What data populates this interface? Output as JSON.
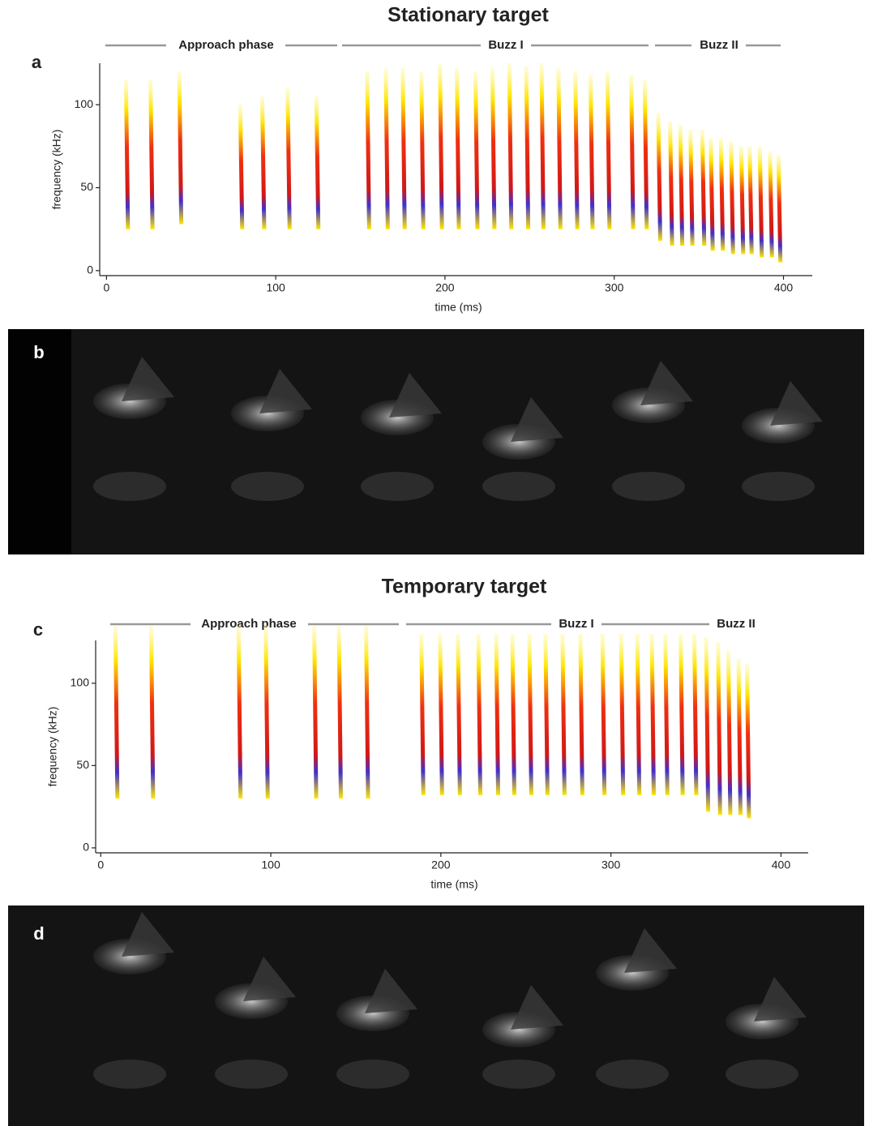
{
  "chart_data": [
    {
      "type": "spectrogram",
      "panel_label": "a",
      "title": "Stationary target",
      "phases": [
        "Approach phase",
        "Buzz I",
        "Buzz II"
      ],
      "xlabel": "time (ms)",
      "ylabel": "frequency (kHz)",
      "xlim": [
        -4,
        417
      ],
      "ylim": [
        -3,
        125
      ],
      "xticks": [
        0,
        100,
        200,
        300,
        400
      ],
      "yticks": [
        0,
        50,
        100
      ],
      "x": [
        11.5,
        26,
        43,
        79,
        92,
        107,
        124,
        154,
        165,
        175,
        186,
        197,
        207,
        218,
        228,
        238,
        248,
        257,
        267,
        277,
        286,
        296,
        310,
        318,
        326,
        333,
        339,
        345,
        352,
        357,
        363,
        369,
        375,
        380,
        386,
        392,
        397
      ],
      "high": [
        115,
        115,
        120,
        100,
        105,
        110,
        105,
        120,
        122,
        122,
        120,
        125,
        122,
        120,
        122,
        125,
        123,
        125,
        122,
        120,
        118,
        120,
        118,
        115,
        95,
        90,
        88,
        85,
        85,
        80,
        80,
        78,
        75,
        75,
        75,
        72,
        70
      ],
      "low": [
        25,
        25,
        28,
        25,
        25,
        25,
        25,
        25,
        25,
        25,
        25,
        25,
        25,
        25,
        25,
        25,
        25,
        25,
        25,
        25,
        25,
        25,
        25,
        25,
        18,
        15,
        15,
        15,
        15,
        12,
        12,
        10,
        10,
        10,
        8,
        8,
        5
      ]
    },
    {
      "type": "spectrogram",
      "panel_label": "c",
      "title": "Temporary target",
      "phases": [
        "Approach phase",
        "Buzz I",
        "Buzz II"
      ],
      "xlabel": "time (ms)",
      "ylabel": "frequency (kHz)",
      "xlim": [
        -3,
        416
      ],
      "ylim": [
        -3,
        126
      ],
      "xticks": [
        0,
        100,
        200,
        300,
        400
      ],
      "yticks": [
        0,
        50,
        100
      ],
      "x": [
        8.6,
        29.6,
        81,
        97,
        125.5,
        140,
        156,
        188.5,
        199.5,
        210,
        222,
        232.5,
        242,
        252,
        261.5,
        271.5,
        282,
        295,
        306,
        315.5,
        324,
        332,
        341,
        349,
        356,
        363,
        369,
        375,
        380
      ],
      "high": [
        135,
        135,
        135,
        135,
        135,
        135,
        135,
        130,
        130,
        130,
        130,
        130,
        130,
        130,
        130,
        130,
        130,
        130,
        130,
        130,
        130,
        130,
        130,
        130,
        128,
        125,
        120,
        115,
        112
      ],
      "low": [
        30,
        30,
        30,
        30,
        30,
        30,
        30,
        32,
        32,
        32,
        32,
        32,
        32,
        32,
        32,
        32,
        32,
        32,
        32,
        32,
        32,
        32,
        32,
        32,
        22,
        20,
        20,
        20,
        18
      ]
    }
  ],
  "photos": [
    {
      "panel_label": "b"
    },
    {
      "panel_label": "d"
    }
  ]
}
